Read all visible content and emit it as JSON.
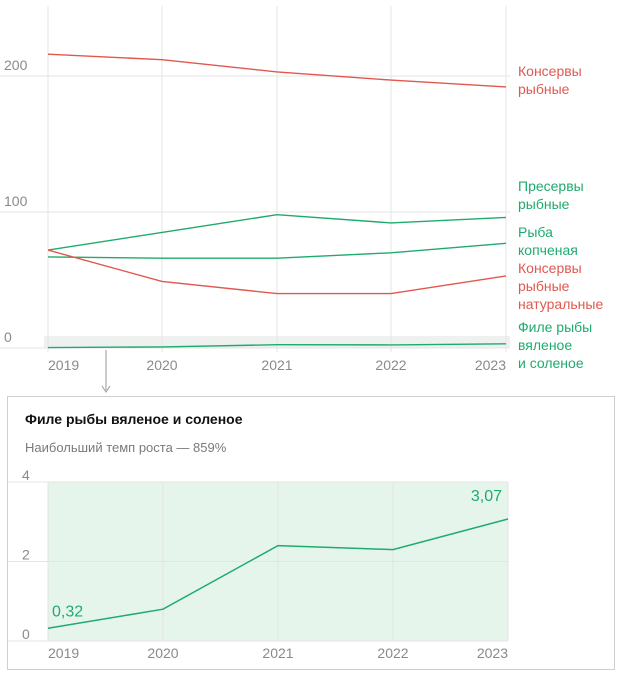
{
  "chart_data": [
    {
      "type": "line",
      "categories": [
        "2019",
        "2020",
        "2021",
        "2022",
        "2023"
      ],
      "ylim": [
        0,
        230
      ],
      "yticks": [
        0,
        100,
        200
      ],
      "series": [
        {
          "name": "Консервы рыбные",
          "label_lines": [
            "Консервы",
            "рыбные"
          ],
          "color": "#e0584f",
          "values": [
            216,
            212,
            203,
            197,
            192
          ]
        },
        {
          "name": "Пресервы рыбные",
          "label_lines": [
            "Пресервы",
            "рыбные"
          ],
          "color": "#1fab6e",
          "values": [
            72,
            85,
            98,
            92,
            96
          ]
        },
        {
          "name": "Рыба копченая",
          "label_lines": [
            "Рыба",
            "копченая"
          ],
          "color": "#1fab6e",
          "values": [
            67,
            66,
            66,
            70,
            77
          ]
        },
        {
          "name": "Консервы рыбные натуральные",
          "label_lines": [
            "Консервы",
            "рыбные",
            "натуральные"
          ],
          "color": "#e0584f",
          "values": [
            72,
            49,
            40,
            40,
            53
          ]
        },
        {
          "name": "Филе рыбы вяленое и соленое",
          "label_lines": [
            "Филе рыбы",
            "вяленое",
            "и соленое"
          ],
          "color": "#1fab6e",
          "values": [
            0.32,
            0.8,
            2.4,
            2.3,
            3.07
          ]
        }
      ]
    },
    {
      "type": "area",
      "title": "Филе рыбы вяленое и соленое",
      "subtitle": "Наибольший темп роста — 859%",
      "categories": [
        "2019",
        "2020",
        "2021",
        "2022",
        "2023"
      ],
      "values": [
        0.32,
        0.8,
        2.4,
        2.3,
        3.07
      ],
      "value_labels": [
        {
          "index": 0,
          "text": "0,32"
        },
        {
          "index": 4,
          "text": "3,07"
        }
      ],
      "ylim": [
        0,
        4
      ],
      "yticks": [
        0,
        2,
        4
      ],
      "color": "#1fab6e",
      "fill": "#e6f5ec"
    }
  ]
}
